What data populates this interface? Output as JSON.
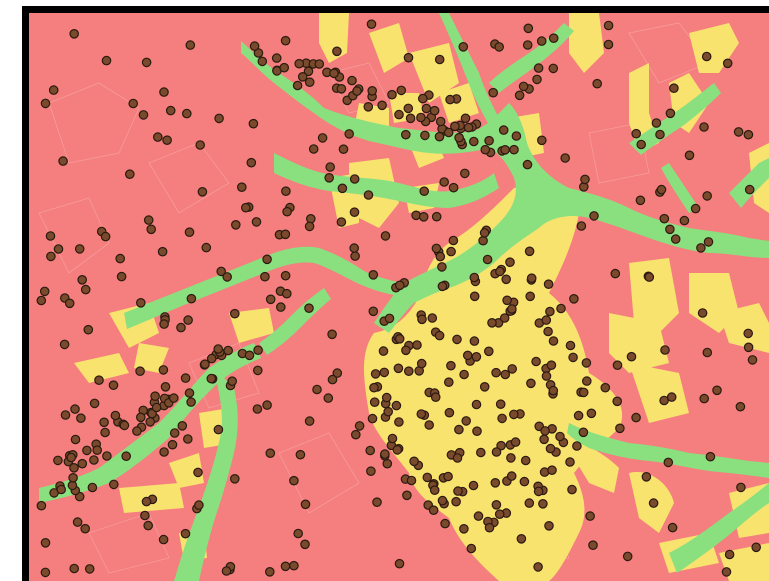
{
  "map": {
    "type": "land-use map with point observations",
    "colors": {
      "background": "#F57E7E",
      "urban_zone": "#F9E36F",
      "river_corridor": "#8AE07F",
      "parcel_lines": "#F8A8A8",
      "points": "#7A4A2C",
      "point_outline": "#2B1A10",
      "frame": "#000000"
    },
    "legend": null,
    "labels": []
  }
}
